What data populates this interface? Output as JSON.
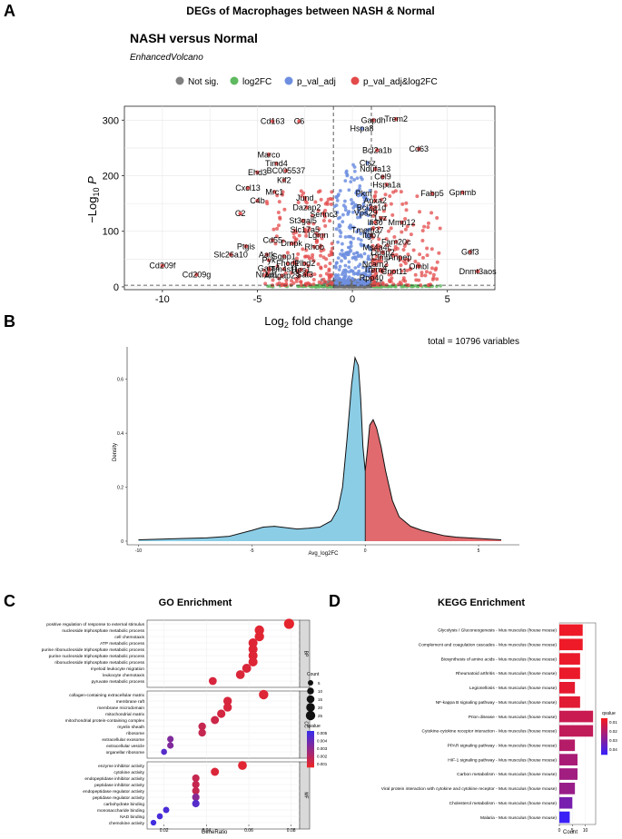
{
  "figure_title": "DEGs of Macrophages between NASH & Normal",
  "panel_labels": [
    "A",
    "B",
    "C",
    "D"
  ],
  "chart_data": [
    {
      "panel": "A",
      "type": "scatter",
      "title": "NASH versus Normal",
      "subtitle": "EnhancedVolcano",
      "xlabel": "Log2 fold change",
      "ylabel": "-Log10 P",
      "xlim": [
        -12,
        7.5
      ],
      "ylim": [
        -5,
        325
      ],
      "xticks": [
        -10,
        -5,
        0,
        5
      ],
      "yticks": [
        0,
        100,
        200,
        300
      ],
      "grid": true,
      "fc_cutoff": 1,
      "p_cutoff_log10": 3,
      "legend": {
        "position": "top",
        "entries": [
          {
            "name": "Not sig.",
            "color": "#808080"
          },
          {
            "name": "log2FC",
            "color": "#5fb95f"
          },
          {
            "name": "p_val_adj",
            "color": "#6e8fe0"
          },
          {
            "name": "p_val_adj&log2FC",
            "color": "#e34a4a"
          }
        ]
      },
      "labeled_genes": [
        {
          "gene": "Cd163",
          "x": -4.2,
          "y": 298
        },
        {
          "gene": "C6",
          "x": -2.8,
          "y": 298
        },
        {
          "gene": "Gapdh",
          "x": 1.1,
          "y": 300
        },
        {
          "gene": "Trem2",
          "x": 2.3,
          "y": 302
        },
        {
          "gene": "Hspa8",
          "x": 0.5,
          "y": 285
        },
        {
          "gene": "Cd63",
          "x": 3.5,
          "y": 248
        },
        {
          "gene": "Bcl2a1b",
          "x": 1.3,
          "y": 246
        },
        {
          "gene": "Marco",
          "x": -4.4,
          "y": 238
        },
        {
          "gene": "Timd4",
          "x": -4.0,
          "y": 222
        },
        {
          "gene": "Ctsz",
          "x": 0.8,
          "y": 223
        },
        {
          "gene": "Ndufa13",
          "x": 1.2,
          "y": 212
        },
        {
          "gene": "BC005537",
          "x": -3.5,
          "y": 209
        },
        {
          "gene": "Ehd3",
          "x": -5.0,
          "y": 206
        },
        {
          "gene": "Cel9",
          "x": 1.6,
          "y": 198
        },
        {
          "gene": "Klf2",
          "x": -3.6,
          "y": 192
        },
        {
          "gene": "Hspa1a",
          "x": 1.8,
          "y": 184
        },
        {
          "gene": "Cxcl13",
          "x": -5.5,
          "y": 178
        },
        {
          "gene": "Mrc1",
          "x": -4.1,
          "y": 171
        },
        {
          "gene": "Pkm",
          "x": 0.6,
          "y": 168
        },
        {
          "gene": "Fabp5",
          "x": 4.2,
          "y": 168
        },
        {
          "gene": "Gpnmb",
          "x": 5.8,
          "y": 170
        },
        {
          "gene": "C4b",
          "x": -5.0,
          "y": 155
        },
        {
          "gene": "Jund",
          "x": -2.5,
          "y": 160
        },
        {
          "gene": "Anxa2",
          "x": 1.2,
          "y": 155
        },
        {
          "gene": "Dazap2",
          "x": -2.4,
          "y": 143
        },
        {
          "gene": "Bcl2a1d",
          "x": 1.0,
          "y": 143
        },
        {
          "gene": "Serinc3",
          "x": -1.5,
          "y": 131
        },
        {
          "gene": "Vps29",
          "x": 0.7,
          "y": 133
        },
        {
          "gene": "C2",
          "x": -5.9,
          "y": 132
        },
        {
          "gene": "Lyz",
          "x": 1.5,
          "y": 124
        },
        {
          "gene": "St3gal5",
          "x": -2.6,
          "y": 119
        },
        {
          "gene": "Ifi30",
          "x": 1.2,
          "y": 116
        },
        {
          "gene": "Mmp12",
          "x": 2.6,
          "y": 116
        },
        {
          "gene": "Slc17a5",
          "x": -2.5,
          "y": 103
        },
        {
          "gene": "Tmem37",
          "x": 0.8,
          "y": 102
        },
        {
          "gene": "Lgmn",
          "x": -1.8,
          "y": 93
        },
        {
          "gene": "Itgb7",
          "x": 1.0,
          "y": 93
        },
        {
          "gene": "Cd55",
          "x": -4.2,
          "y": 84
        },
        {
          "gene": "Fam20c",
          "x": 2.3,
          "y": 81
        },
        {
          "gene": "Dmpk",
          "x": -3.2,
          "y": 78
        },
        {
          "gene": "Ptgis",
          "x": -5.6,
          "y": 73
        },
        {
          "gene": "Rhob",
          "x": -2.0,
          "y": 72
        },
        {
          "gene": "Ms4a4c",
          "x": 1.3,
          "y": 71
        },
        {
          "gene": "Dusp2",
          "x": 1.6,
          "y": 62
        },
        {
          "gene": "Gdf3",
          "x": 6.2,
          "y": 63
        },
        {
          "gene": "Slc26a10",
          "x": -6.4,
          "y": 58
        },
        {
          "gene": "Aatk",
          "x": -4.5,
          "y": 58
        },
        {
          "gene": "Sgpp1",
          "x": -3.6,
          "y": 55
        },
        {
          "gene": "Clmp",
          "x": 1.5,
          "y": 53
        },
        {
          "gene": "Anpep",
          "x": 2.5,
          "y": 53
        },
        {
          "gene": "Pyk",
          "x": -4.4,
          "y": 48
        },
        {
          "gene": "Cd209f",
          "x": -10.0,
          "y": 38
        },
        {
          "gene": "Fhod1",
          "x": -3.4,
          "y": 42
        },
        {
          "gene": "Plbd2",
          "x": -2.5,
          "y": 42
        },
        {
          "gene": "Ncam2",
          "x": 1.2,
          "y": 41
        },
        {
          "gene": "Ombl",
          "x": 3.5,
          "y": 37
        },
        {
          "gene": "Gata4",
          "x": -4.4,
          "y": 33
        },
        {
          "gene": "Tm4sf1",
          "x": -3.6,
          "y": 32
        },
        {
          "gene": "Hes1",
          "x": -2.7,
          "y": 31
        },
        {
          "gene": "Trem3",
          "x": 1.2,
          "y": 31
        },
        {
          "gene": "Cnot11",
          "x": 2.2,
          "y": 28
        },
        {
          "gene": "Dnmt3aos",
          "x": 6.6,
          "y": 28
        },
        {
          "gene": "Cd209g",
          "x": -8.2,
          "y": 22
        },
        {
          "gene": "Nr1d1",
          "x": -4.5,
          "y": 22
        },
        {
          "gene": "Arhgap29",
          "x": -3.7,
          "y": 20
        },
        {
          "gene": "Sat3",
          "x": -2.5,
          "y": 22
        },
        {
          "gene": "Rpp40",
          "x": 1.0,
          "y": 16
        }
      ]
    },
    {
      "panel": "B",
      "type": "area",
      "title": "total = 10796 variables",
      "xlabel": "Avg_log2FC",
      "ylabel": "Density",
      "xlim": [
        -10.5,
        6.8
      ],
      "ylim": [
        0,
        0.72
      ],
      "xticks": [
        -10,
        -5,
        0,
        5
      ],
      "yticks": [
        0,
        0.2,
        0.4,
        0.6
      ],
      "split_at": 0,
      "fill_negative": "#8ccde6",
      "fill_positive": "#e06a6e",
      "density_x": [
        -10,
        -8,
        -7,
        -6,
        -5,
        -4.5,
        -4,
        -3.5,
        -3,
        -2.5,
        -2,
        -1.5,
        -1.2,
        -1,
        -0.8,
        -0.6,
        -0.45,
        -0.3,
        -0.2,
        -0.1,
        0,
        0.1,
        0.2,
        0.35,
        0.5,
        0.7,
        0.9,
        1.2,
        1.5,
        2,
        2.5,
        3,
        3.5,
        4,
        5,
        6
      ],
      "density_y": [
        0.005,
        0.01,
        0.012,
        0.018,
        0.04,
        0.052,
        0.055,
        0.05,
        0.045,
        0.048,
        0.052,
        0.075,
        0.12,
        0.2,
        0.38,
        0.58,
        0.68,
        0.65,
        0.53,
        0.35,
        0.26,
        0.34,
        0.43,
        0.45,
        0.42,
        0.35,
        0.26,
        0.15,
        0.09,
        0.055,
        0.04,
        0.03,
        0.02,
        0.015,
        0.01,
        0.005
      ]
    },
    {
      "panel": "C",
      "type": "scatter",
      "title": "GO Enrichment",
      "xlabel": "GeneRatio",
      "xlim": [
        0.012,
        0.084
      ],
      "xticks": [
        0.02,
        0.04,
        0.06,
        0.08
      ],
      "size_legend": {
        "title": "Count",
        "values": [
          5,
          10,
          15,
          20,
          25
        ]
      },
      "color_legend": {
        "title": "qvalue",
        "ticks": [
          "0.005",
          "0.004",
          "0.003",
          "0.002",
          "0.001"
        ],
        "low_color": "#e8252a",
        "high_color": "#3a2de8"
      },
      "facets": [
        {
          "name": "BP",
          "terms": [
            {
              "term": "positive regulation of response to external stimulus",
              "ratio": 0.079,
              "count": 30,
              "q": 0.0001
            },
            {
              "term": "nucleoside triphosphate metabolic process",
              "ratio": 0.065,
              "count": 25,
              "q": 0.0002
            },
            {
              "term": "cell chemotaxis",
              "ratio": 0.065,
              "count": 25,
              "q": 0.0002
            },
            {
              "term": "ATP metabolic process",
              "ratio": 0.062,
              "count": 23,
              "q": 0.0003
            },
            {
              "term": "purine ribonucleoside triphosphate metabolic process",
              "ratio": 0.062,
              "count": 23,
              "q": 0.0003
            },
            {
              "term": "purine nucleoside triphosphate metabolic process",
              "ratio": 0.062,
              "count": 23,
              "q": 0.0003
            },
            {
              "term": "ribonucleoside triphosphate metabolic process",
              "ratio": 0.062,
              "count": 23,
              "q": 0.0003
            },
            {
              "term": "myeloid leukocyte migration",
              "ratio": 0.059,
              "count": 22,
              "q": 0.0004
            },
            {
              "term": "leukocyte chemotaxis",
              "ratio": 0.056,
              "count": 21,
              "q": 0.0004
            },
            {
              "term": "pyruvate metabolic process",
              "ratio": 0.043,
              "count": 16,
              "q": 0.0005
            }
          ]
        },
        {
          "name": "CC",
          "terms": [
            {
              "term": "collagen-containing extracellular matrix",
              "ratio": 0.067,
              "count": 25,
              "q": 0.0003
            },
            {
              "term": "membrane raft",
              "ratio": 0.05,
              "count": 19,
              "q": 0.0005
            },
            {
              "term": "membrane microdomain",
              "ratio": 0.05,
              "count": 19,
              "q": 0.0005
            },
            {
              "term": "mitochondrial matrix",
              "ratio": 0.047,
              "count": 18,
              "q": 0.0006
            },
            {
              "term": "mitochondrial protein-containing complex",
              "ratio": 0.044,
              "count": 17,
              "q": 0.0008
            },
            {
              "term": "myelin sheath",
              "ratio": 0.038,
              "count": 14,
              "q": 0.001
            },
            {
              "term": "ribosome",
              "ratio": 0.038,
              "count": 14,
              "q": 0.001
            },
            {
              "term": "extracellular exosome",
              "ratio": 0.023,
              "count": 9,
              "q": 0.003
            },
            {
              "term": "extracellular vesicle",
              "ratio": 0.023,
              "count": 9,
              "q": 0.003
            },
            {
              "term": "organellar ribosome",
              "ratio": 0.02,
              "count": 7,
              "q": 0.0042
            }
          ]
        },
        {
          "name": "MF",
          "terms": [
            {
              "term": "enzyme inhibitor activity",
              "ratio": 0.057,
              "count": 21,
              "q": 0.0002
            },
            {
              "term": "cytokine activity",
              "ratio": 0.044,
              "count": 17,
              "q": 0.0004
            },
            {
              "term": "endopeptidase inhibitor activity",
              "ratio": 0.035,
              "count": 13,
              "q": 0.001
            },
            {
              "term": "peptidase inhibitor activity",
              "ratio": 0.035,
              "count": 13,
              "q": 0.001
            },
            {
              "term": "endopeptidase regulator activity",
              "ratio": 0.035,
              "count": 13,
              "q": 0.001
            },
            {
              "term": "peptidase regulator activity",
              "ratio": 0.035,
              "count": 13,
              "q": 0.0028
            },
            {
              "term": "carbohydrate binding",
              "ratio": 0.035,
              "count": 13,
              "q": 0.0042
            },
            {
              "term": "monosaccharide binding",
              "ratio": 0.021,
              "count": 8,
              "q": 0.0045
            },
            {
              "term": "NAD binding",
              "ratio": 0.018,
              "count": 7,
              "q": 0.0046
            },
            {
              "term": "chemokine activity",
              "ratio": 0.015,
              "count": 6,
              "q": 0.0048
            }
          ]
        }
      ]
    },
    {
      "panel": "D",
      "type": "bar",
      "orientation": "horizontal",
      "title": "KEGG Enrichment",
      "xlabel": "Count",
      "xlim": [
        0,
        14
      ],
      "xticks": [
        0,
        5,
        10
      ],
      "color_legend": {
        "title": "qvalue",
        "ticks": [
          "0.01",
          "0.02",
          "0.03",
          "0.04"
        ],
        "low_color": "#f21a22",
        "high_color": "#3b20f5"
      },
      "categories": [
        "Glycolysis / Gluconeogenesis - Mus musculus (house mouse)",
        "Complement and coagulation cascades - Mus musculus (house mouse)",
        "Biosynthesis of amino acids - Mus musculus (house mouse)",
        "Rheumatoid arthritis - Mus musculus (house mouse)",
        "Legionellosis - Mus musculus (house mouse)",
        "NF-kappa B signaling pathway - Mus musculus (house mouse)",
        "Prion disease - Mus musculus (house mouse)",
        "Cytokine-cytokine receptor interaction - Mus musculus (house mouse)",
        "PPAR signaling pathway - Mus musculus (house mouse)",
        "HIF-1 signaling pathway - Mus musculus (house mouse)",
        "Carbon metabolism - Mus musculus (house mouse)",
        "Viral protein interaction with cytokine and cytokine receptor - Mus musculus (house mouse)",
        "Cholesterol metabolism - Mus musculus (house mouse)",
        "Malaria - Mus musculus (house mouse)"
      ],
      "values": [
        9,
        9,
        8,
        8,
        6,
        8,
        13,
        13,
        6,
        7,
        7,
        6,
        5,
        4
      ],
      "qvalues": [
        0.001,
        0.001,
        0.002,
        0.002,
        0.003,
        0.004,
        0.01,
        0.012,
        0.015,
        0.018,
        0.02,
        0.022,
        0.03,
        0.045
      ]
    }
  ]
}
